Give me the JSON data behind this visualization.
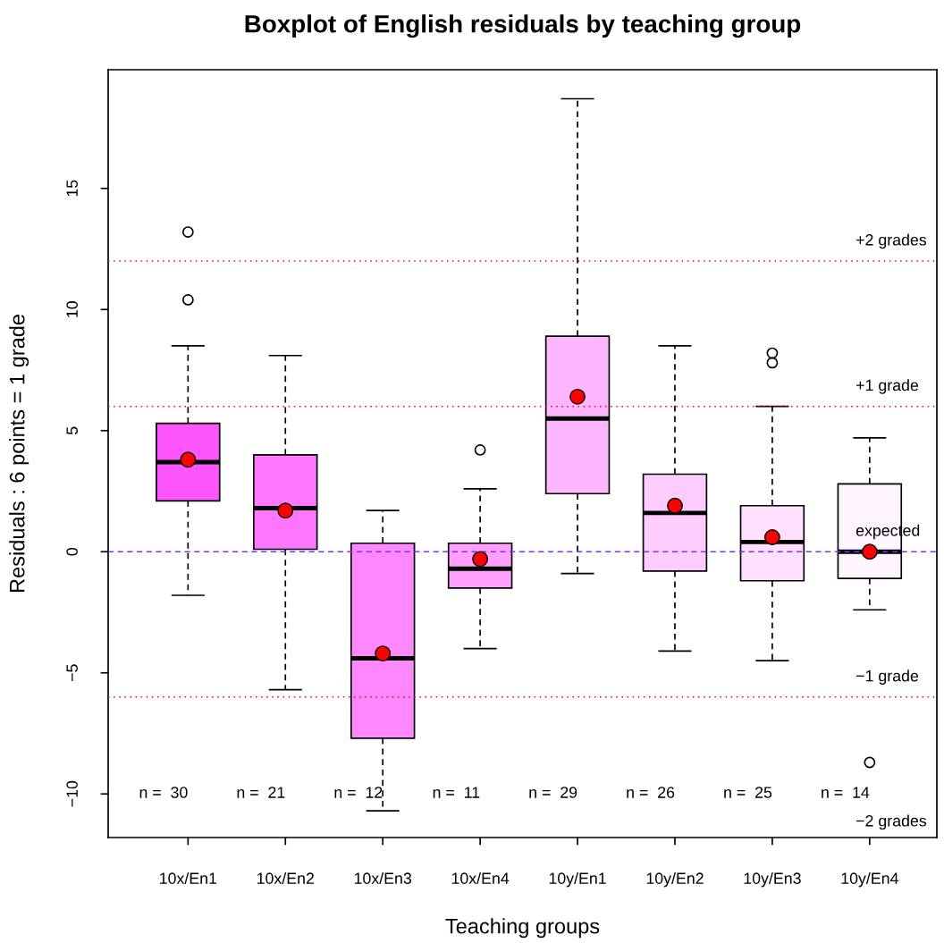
{
  "chart_data": {
    "type": "box",
    "title": "Boxplot of English residuals by teaching group",
    "xlabel": "Teaching groups",
    "ylabel": "Residuals : 6 points = 1 grade",
    "categories": [
      "10x/En1",
      "10x/En2",
      "10x/En3",
      "10x/En4",
      "10y/En1",
      "10y/En2",
      "10y/En3",
      "10y/En4"
    ],
    "boxes": [
      {
        "low": -1.8,
        "q1": 2.1,
        "median": 3.7,
        "q3": 5.3,
        "high": 8.5,
        "outliers": [
          13.2,
          10.4
        ]
      },
      {
        "low": -5.7,
        "q1": 0.1,
        "median": 1.8,
        "q3": 4.0,
        "high": 8.1
      },
      {
        "low": -10.7,
        "q1": -7.7,
        "median": -4.4,
        "q3": 0.35,
        "high": 1.7
      },
      {
        "low": -4.0,
        "q1": -1.5,
        "median": -0.7,
        "q3": 0.35,
        "high": 2.6,
        "outliers": [
          4.2
        ]
      },
      {
        "low": -0.9,
        "q1": 2.4,
        "median": 5.5,
        "q3": 8.9,
        "high": 18.7
      },
      {
        "low": -4.1,
        "q1": -0.8,
        "median": 1.6,
        "q3": 3.2,
        "high": 8.5
      },
      {
        "low": -4.5,
        "q1": -1.2,
        "median": 0.4,
        "q3": 1.9,
        "high": 6.0,
        "outliers": [
          8.2,
          7.8
        ]
      },
      {
        "low": -2.4,
        "q1": -1.1,
        "median": 0.0,
        "q3": 2.8,
        "high": 4.7,
        "outliers": [
          -8.7
        ]
      }
    ],
    "colors": [
      "#ff55ff",
      "#ff77ff",
      "#ff88ff",
      "#ffa0ff",
      "#ffb5ff",
      "#ffccff",
      "#ffe0ff",
      "#fff5ff"
    ],
    "series": [
      {
        "type": "scatter",
        "x": [
          "10x/En1",
          "10x/En2",
          "10x/En3",
          "10x/En4",
          "10y/En1",
          "10y/En2",
          "10y/En3",
          "10y/En4"
        ],
        "values": [
          3.8,
          1.7,
          -4.2,
          -0.3,
          6.4,
          1.9,
          0.6,
          0.0
        ],
        "color": "#ff0000",
        "marker": "circle"
      }
    ],
    "ylim": [
      -11.8,
      19.9
    ],
    "yticks": [
      {
        "value": -10,
        "label": "−10"
      },
      {
        "value": -5,
        "label": "−5"
      },
      0,
      5,
      10,
      15
    ],
    "ref_lines": [
      {
        "axis": "y",
        "value": 12,
        "label": "+2 grades",
        "color": "#ff0000",
        "line_style": "dotted"
      },
      {
        "axis": "y",
        "value": 6,
        "label": "+1 grade",
        "color": "#ff0000",
        "line_style": "dotted"
      },
      {
        "axis": "y",
        "value": 0,
        "label": "expected",
        "color": "#7733ff",
        "line_style": "dashed"
      },
      {
        "axis": "y",
        "value": -6,
        "label": "−1 grade",
        "color": "#ff0000",
        "line_style": "dotted"
      }
    ],
    "annotations": [
      "n =  30",
      "n =  21",
      "n =  12",
      "n =  11",
      "n =  29",
      "n =  26",
      "n =  25",
      "n =  14",
      "−2 grades"
    ]
  }
}
